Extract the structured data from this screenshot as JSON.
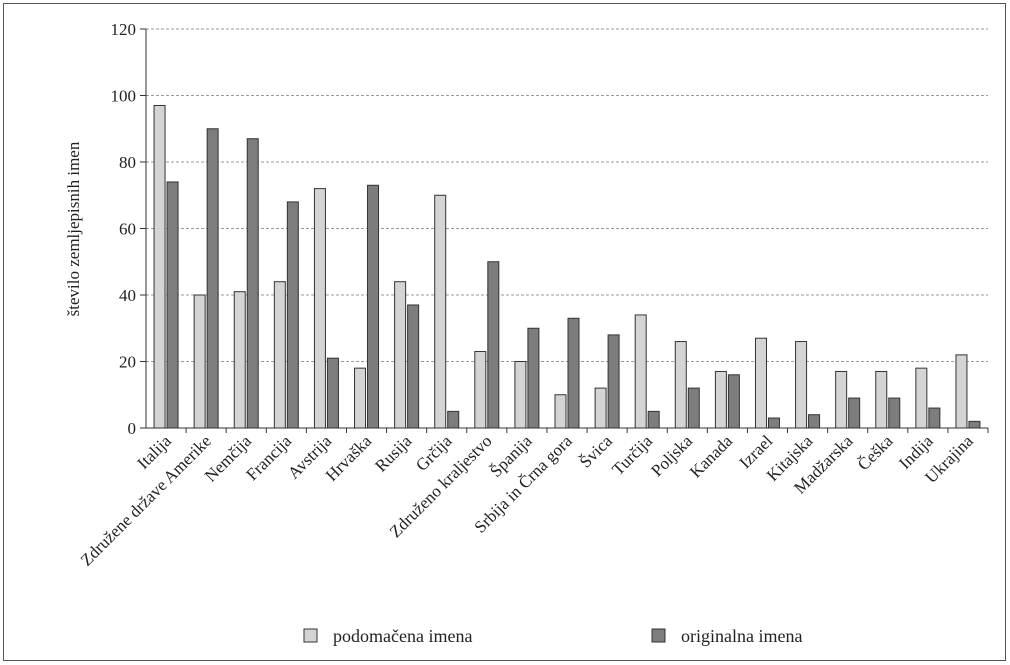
{
  "chart_data": {
    "type": "bar",
    "ylabel": "število zemljepisnih imen",
    "xlabel": "",
    "ylim": [
      0,
      120
    ],
    "yticks": [
      0,
      20,
      40,
      60,
      80,
      100,
      120
    ],
    "grid": "horizontal dashed",
    "legend_position": "bottom",
    "categories": [
      "Italija",
      "Združene države Amerike",
      "Nemčija",
      "Francija",
      "Avstrija",
      "Hrvaška",
      "Rusija",
      "Grčija",
      "Združeno kraljestvo",
      "Španija",
      "Srbija in Črna gora",
      "Švica",
      "Turčija",
      "Poljska",
      "Kanada",
      "Izrael",
      "Kitajska",
      "Madžarska",
      "Češka",
      "Indija",
      "Ukrajina"
    ],
    "series": [
      {
        "name": "podomačena imena",
        "color": "#d4d4d4",
        "values": [
          97,
          40,
          41,
          44,
          72,
          18,
          44,
          70,
          23,
          20,
          10,
          12,
          34,
          26,
          17,
          27,
          26,
          17,
          17,
          18,
          22
        ]
      },
      {
        "name": "originalna imena",
        "color": "#7d7d7d",
        "values": [
          74,
          90,
          87,
          68,
          21,
          73,
          37,
          5,
          50,
          30,
          33,
          28,
          5,
          12,
          16,
          3,
          4,
          9,
          9,
          6,
          2
        ]
      }
    ]
  }
}
